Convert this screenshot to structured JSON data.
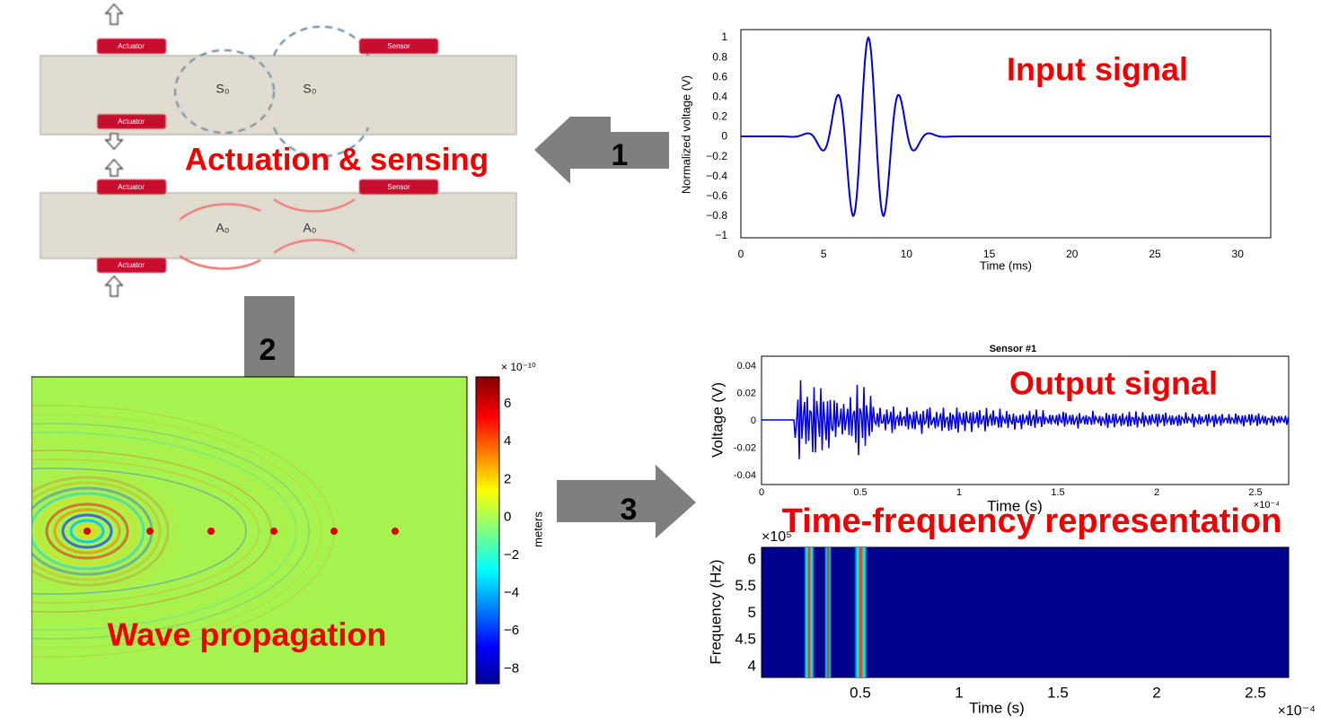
{
  "diagram": {
    "actuator_labels": [
      "Actuator",
      "Actuator",
      "Actuator",
      "Actuator"
    ],
    "sensor_labels": [
      "Sensor",
      "Sensor"
    ],
    "modes": [
      "S₀",
      "S₀",
      "A₀",
      "A₀"
    ],
    "caption": "Actuation & sensing"
  },
  "steps": [
    "1",
    "2",
    "3"
  ],
  "input_signal": {
    "title": "Input signal",
    "y_label": "Normalized voltage (V)",
    "x_label": "Time (ms)",
    "yticks": [
      "1",
      "0.8",
      "0.6",
      "0.4",
      "0.2",
      "0",
      "−0.2",
      "−0.4",
      "−0.6",
      "−0.8",
      "−1"
    ],
    "xticks": [
      "0",
      "5",
      "10",
      "15",
      "20",
      "25",
      "30"
    ]
  },
  "wave_propagation": {
    "title": "Wave propagation",
    "colorbar_exponent": "× 10⁻¹⁰",
    "colorbar_label": "meters",
    "colorbar_ticks": [
      "6",
      "4",
      "2",
      "0",
      "−2",
      "−4",
      "−6",
      "−8"
    ]
  },
  "output_signal": {
    "title": "Output signal",
    "plot_title": "Sensor #1",
    "y_label": "Voltage (V)",
    "x_label": "Time (s)",
    "x_exponent": "×10⁻⁴",
    "yticks": [
      "0.04",
      "0.02",
      "0",
      "-0.02",
      "-0.04"
    ],
    "xticks": [
      "0",
      "0.5",
      "1",
      "1.5",
      "2",
      "2.5"
    ]
  },
  "time_frequency": {
    "title": "Time-frequency representation",
    "y_label": "Frequency (Hz)",
    "x_label": "Time (s)",
    "y_exponent": "×10⁵",
    "x_exponent": "×10⁻⁴",
    "yticks": [
      "6",
      "5.5",
      "5",
      "4.5",
      "4"
    ],
    "xticks": [
      "0.5",
      "1",
      "1.5",
      "2",
      "2.5"
    ]
  }
}
